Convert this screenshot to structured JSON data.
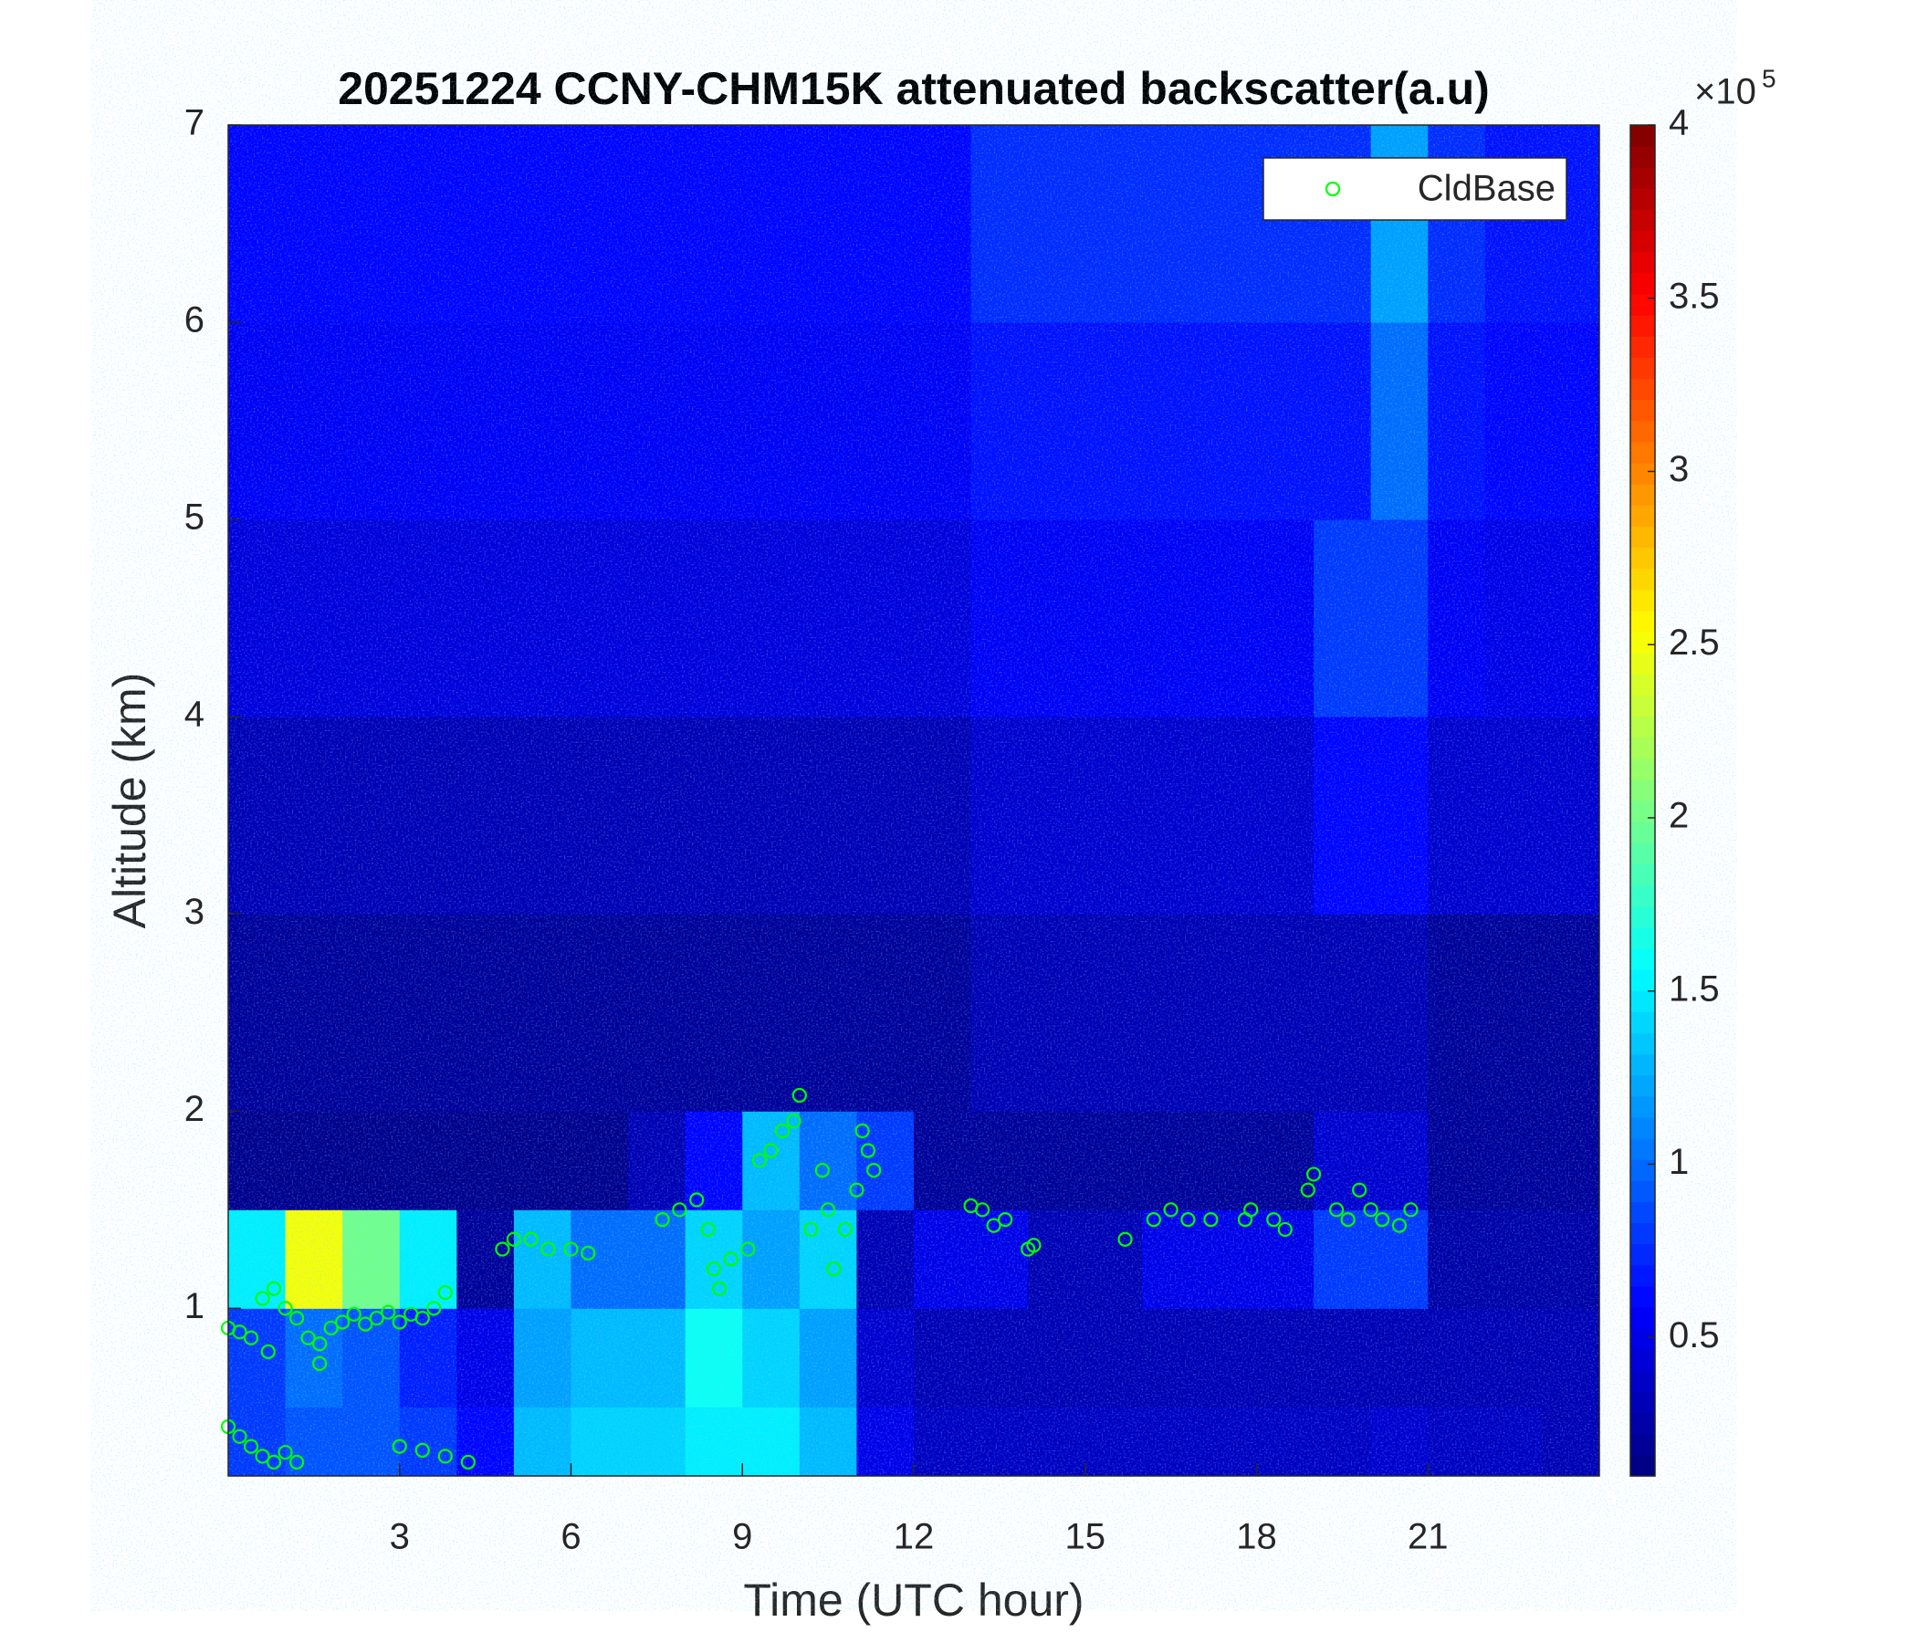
{
  "chart_data": {
    "type": "heatmap",
    "title": "20251224 CCNY-CHM15K attenuated backscatter(a.u)",
    "xlabel": "Time (UTC hour)",
    "ylabel": "Altitude (km)",
    "xlim": [
      0,
      24
    ],
    "xticks": [
      3,
      6,
      9,
      12,
      15,
      18,
      21
    ],
    "ylim": [
      0.15,
      7
    ],
    "yticks": [
      1,
      2,
      3,
      4,
      5,
      6,
      7
    ],
    "colormap": "jet",
    "clim": [
      0.1,
      4
    ],
    "cticks": [
      0.5,
      1,
      1.5,
      2,
      2.5,
      3,
      3.5,
      4
    ],
    "colorbar_multiplier": {
      "base": "×10",
      "exponent": "5"
    },
    "x_edges": [
      0,
      1,
      2,
      3,
      4,
      5,
      6,
      7,
      8,
      9,
      10,
      11,
      12,
      13,
      14,
      15,
      16,
      17,
      18,
      19,
      20,
      21,
      22,
      23,
      24
    ],
    "y_edges": [
      0.15,
      0.5,
      1,
      1.5,
      2,
      3,
      4,
      5,
      6,
      7
    ],
    "z": [
      [
        0.8,
        0.9,
        0.9,
        0.8,
        0.6,
        1.3,
        1.4,
        1.4,
        1.5,
        1.5,
        1.3,
        0.5,
        0.35,
        0.35,
        0.35,
        0.35,
        0.35,
        0.35,
        0.35,
        0.35,
        0.4,
        0.35,
        0.35,
        0.3
      ],
      [
        0.8,
        1.0,
        0.9,
        0.7,
        0.5,
        1.2,
        1.3,
        1.3,
        1.6,
        1.4,
        1.2,
        0.4,
        0.3,
        0.3,
        0.3,
        0.3,
        0.3,
        0.3,
        0.3,
        0.3,
        0.3,
        0.3,
        0.3,
        0.3
      ],
      [
        1.5,
        2.5,
        2.0,
        1.5,
        0.2,
        1.3,
        1.0,
        1.0,
        1.4,
        1.2,
        1.4,
        0.3,
        0.5,
        0.5,
        0.3,
        0.3,
        0.5,
        0.5,
        0.5,
        0.8,
        0.8,
        0.25,
        0.25,
        0.25
      ],
      [
        0.15,
        0.15,
        0.15,
        0.15,
        0.15,
        0.15,
        0.15,
        0.3,
        0.6,
        1.3,
        1.0,
        0.8,
        0.2,
        0.2,
        0.2,
        0.2,
        0.2,
        0.2,
        0.2,
        0.4,
        0.4,
        0.2,
        0.2,
        0.2
      ],
      [
        0.2,
        0.2,
        0.2,
        0.2,
        0.2,
        0.2,
        0.2,
        0.2,
        0.2,
        0.2,
        0.2,
        0.2,
        0.2,
        0.3,
        0.3,
        0.3,
        0.3,
        0.3,
        0.3,
        0.3,
        0.3,
        0.2,
        0.2,
        0.2
      ],
      [
        0.3,
        0.3,
        0.3,
        0.3,
        0.3,
        0.3,
        0.3,
        0.3,
        0.3,
        0.3,
        0.3,
        0.3,
        0.3,
        0.4,
        0.4,
        0.4,
        0.4,
        0.4,
        0.4,
        0.6,
        0.6,
        0.4,
        0.4,
        0.4
      ],
      [
        0.45,
        0.45,
        0.45,
        0.45,
        0.45,
        0.45,
        0.45,
        0.45,
        0.45,
        0.45,
        0.45,
        0.45,
        0.45,
        0.55,
        0.55,
        0.55,
        0.55,
        0.55,
        0.55,
        0.8,
        0.8,
        0.55,
        0.5,
        0.5
      ],
      [
        0.55,
        0.55,
        0.55,
        0.55,
        0.55,
        0.55,
        0.55,
        0.55,
        0.55,
        0.55,
        0.55,
        0.55,
        0.55,
        0.65,
        0.65,
        0.65,
        0.65,
        0.65,
        0.65,
        0.65,
        1.0,
        0.65,
        0.6,
        0.6
      ],
      [
        0.6,
        0.6,
        0.6,
        0.6,
        0.6,
        0.6,
        0.6,
        0.6,
        0.6,
        0.6,
        0.6,
        0.6,
        0.6,
        0.75,
        0.75,
        0.75,
        0.75,
        0.75,
        0.75,
        0.75,
        1.2,
        0.75,
        0.65,
        0.65
      ]
    ],
    "series": [
      {
        "name": "CldBase",
        "type": "scatter",
        "color": "#00ff00",
        "x": [
          0.0,
          0.2,
          0.4,
          0.6,
          0.8,
          1.0,
          1.2,
          1.4,
          1.6,
          1.8,
          2.0,
          2.2,
          2.4,
          2.6,
          2.8,
          3.0,
          3.2,
          3.4,
          3.6,
          3.8,
          0.0,
          0.2,
          0.4,
          0.6,
          0.8,
          1.0,
          1.2,
          3.0,
          3.4,
          3.8,
          4.2,
          0.7,
          1.6,
          4.8,
          5.0,
          5.3,
          5.6,
          6.0,
          6.3,
          7.6,
          7.9,
          8.2,
          8.4,
          8.5,
          8.6,
          8.8,
          9.1,
          9.3,
          9.5,
          9.7,
          9.9,
          10.0,
          10.2,
          10.4,
          10.5,
          10.6,
          10.8,
          11.0,
          11.1,
          11.2,
          11.3,
          13.0,
          13.2,
          13.4,
          13.6,
          14.0,
          14.1,
          15.7,
          16.2,
          16.5,
          16.8,
          17.2,
          17.8,
          17.9,
          18.3,
          18.5,
          18.9,
          19.0,
          19.4,
          19.6,
          19.8,
          20.0,
          20.2,
          20.5,
          20.7
        ],
        "y": [
          0.9,
          0.88,
          0.85,
          1.05,
          1.1,
          1.0,
          0.95,
          0.85,
          0.82,
          0.9,
          0.93,
          0.97,
          0.92,
          0.95,
          0.98,
          0.93,
          0.97,
          0.95,
          1.0,
          1.08,
          0.4,
          0.35,
          0.3,
          0.25,
          0.22,
          0.27,
          0.22,
          0.3,
          0.28,
          0.25,
          0.22,
          0.78,
          0.72,
          1.3,
          1.35,
          1.35,
          1.3,
          1.3,
          1.28,
          1.45,
          1.5,
          1.55,
          1.4,
          1.2,
          1.1,
          1.25,
          1.3,
          1.75,
          1.8,
          1.9,
          1.95,
          2.08,
          1.4,
          1.7,
          1.5,
          1.2,
          1.4,
          1.6,
          1.9,
          1.8,
          1.7,
          1.52,
          1.5,
          1.42,
          1.45,
          1.3,
          1.32,
          1.35,
          1.45,
          1.5,
          1.45,
          1.45,
          1.45,
          1.5,
          1.45,
          1.4,
          1.6,
          1.68,
          1.5,
          1.45,
          1.6,
          1.5,
          1.45,
          1.42,
          1.5
        ]
      }
    ],
    "legend": "northeast"
  }
}
